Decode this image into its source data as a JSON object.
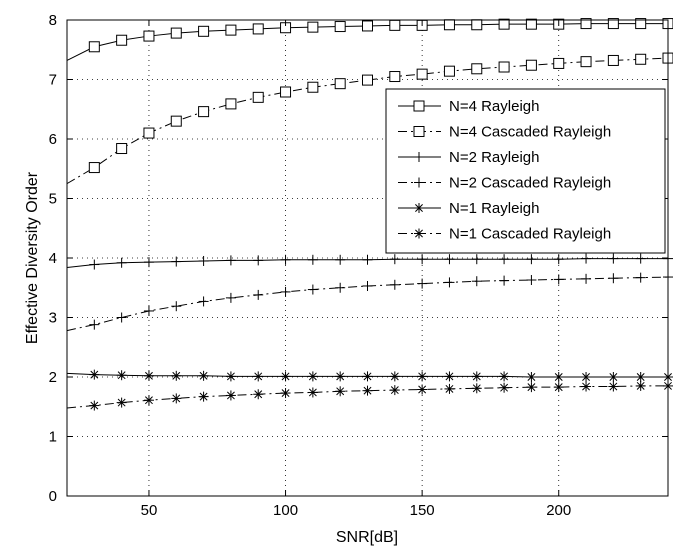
{
  "chart_data": {
    "type": "line",
    "title": "",
    "xlabel": "SNR[dB]",
    "ylabel": "Effective Diversity Order",
    "xlim": [
      20,
      240
    ],
    "ylim": [
      0,
      8
    ],
    "xticks": [
      50,
      100,
      150,
      200
    ],
    "yticks": [
      0,
      1,
      2,
      3,
      4,
      5,
      6,
      7,
      8
    ],
    "grid": true,
    "legend_position": "right",
    "marker_x": [
      30,
      40,
      50,
      60,
      70,
      80,
      90,
      100,
      110,
      120,
      130,
      140,
      150,
      160,
      170,
      180,
      190,
      200,
      210,
      220,
      230,
      240
    ],
    "series": [
      {
        "name": "N=4 Rayleigh",
        "line_style": "solid",
        "marker": "square",
        "x": [
          20,
          30,
          40,
          50,
          60,
          70,
          80,
          90,
          100,
          110,
          120,
          130,
          140,
          150,
          160,
          170,
          180,
          190,
          200,
          210,
          220,
          230,
          240
        ],
        "y": [
          7.32,
          7.55,
          7.66,
          7.73,
          7.78,
          7.81,
          7.83,
          7.85,
          7.87,
          7.88,
          7.89,
          7.9,
          7.91,
          7.91,
          7.92,
          7.92,
          7.93,
          7.93,
          7.93,
          7.94,
          7.94,
          7.94,
          7.94
        ]
      },
      {
        "name": "N=4 Cascaded Rayleigh",
        "line_style": "dashdot",
        "marker": "square",
        "x": [
          20,
          30,
          40,
          50,
          60,
          70,
          80,
          90,
          100,
          110,
          120,
          130,
          140,
          150,
          160,
          170,
          180,
          190,
          200,
          210,
          220,
          230,
          240
        ],
        "y": [
          5.25,
          5.52,
          5.84,
          6.1,
          6.3,
          6.46,
          6.59,
          6.7,
          6.79,
          6.87,
          6.93,
          6.99,
          7.05,
          7.09,
          7.14,
          7.18,
          7.21,
          7.24,
          7.27,
          7.3,
          7.32,
          7.34,
          7.36
        ]
      },
      {
        "name": "N=2 Rayleigh",
        "line_style": "solid",
        "marker": "plus",
        "x": [
          20,
          30,
          40,
          50,
          60,
          70,
          80,
          90,
          100,
          110,
          120,
          130,
          140,
          150,
          160,
          170,
          180,
          190,
          200,
          210,
          220,
          230,
          240
        ],
        "y": [
          3.84,
          3.89,
          3.92,
          3.93,
          3.94,
          3.95,
          3.96,
          3.96,
          3.97,
          3.97,
          3.97,
          3.97,
          3.98,
          3.98,
          3.98,
          3.98,
          3.98,
          3.98,
          3.98,
          3.99,
          3.99,
          3.99,
          3.99
        ]
      },
      {
        "name": "N=2 Cascaded Rayleigh",
        "line_style": "dashdot",
        "marker": "plus",
        "x": [
          20,
          30,
          40,
          50,
          60,
          70,
          80,
          90,
          100,
          110,
          120,
          130,
          140,
          150,
          160,
          170,
          180,
          190,
          200,
          210,
          220,
          230,
          240
        ],
        "y": [
          2.78,
          2.88,
          3.0,
          3.11,
          3.19,
          3.27,
          3.33,
          3.38,
          3.43,
          3.47,
          3.5,
          3.53,
          3.55,
          3.57,
          3.59,
          3.61,
          3.62,
          3.63,
          3.64,
          3.65,
          3.66,
          3.67,
          3.68
        ]
      },
      {
        "name": "N=1 Rayleigh",
        "line_style": "solid",
        "marker": "asterisk",
        "x": [
          20,
          30,
          40,
          50,
          60,
          70,
          80,
          90,
          100,
          110,
          120,
          130,
          140,
          150,
          160,
          170,
          180,
          190,
          200,
          210,
          220,
          230,
          240
        ],
        "y": [
          2.06,
          2.04,
          2.03,
          2.02,
          2.02,
          2.02,
          2.01,
          2.01,
          2.01,
          2.01,
          2.01,
          2.01,
          2.01,
          2.01,
          2.01,
          2.01,
          2.01,
          2.0,
          2.0,
          2.0,
          2.0,
          2.0,
          2.0
        ]
      },
      {
        "name": "N=1 Cascaded Rayleigh",
        "line_style": "dashdot",
        "marker": "asterisk",
        "x": [
          20,
          30,
          40,
          50,
          60,
          70,
          80,
          90,
          100,
          110,
          120,
          130,
          140,
          150,
          160,
          170,
          180,
          190,
          200,
          210,
          220,
          230,
          240
        ],
        "y": [
          1.48,
          1.52,
          1.57,
          1.61,
          1.64,
          1.67,
          1.69,
          1.71,
          1.73,
          1.74,
          1.76,
          1.77,
          1.78,
          1.79,
          1.8,
          1.81,
          1.82,
          1.83,
          1.83,
          1.84,
          1.84,
          1.85,
          1.85
        ]
      }
    ]
  }
}
